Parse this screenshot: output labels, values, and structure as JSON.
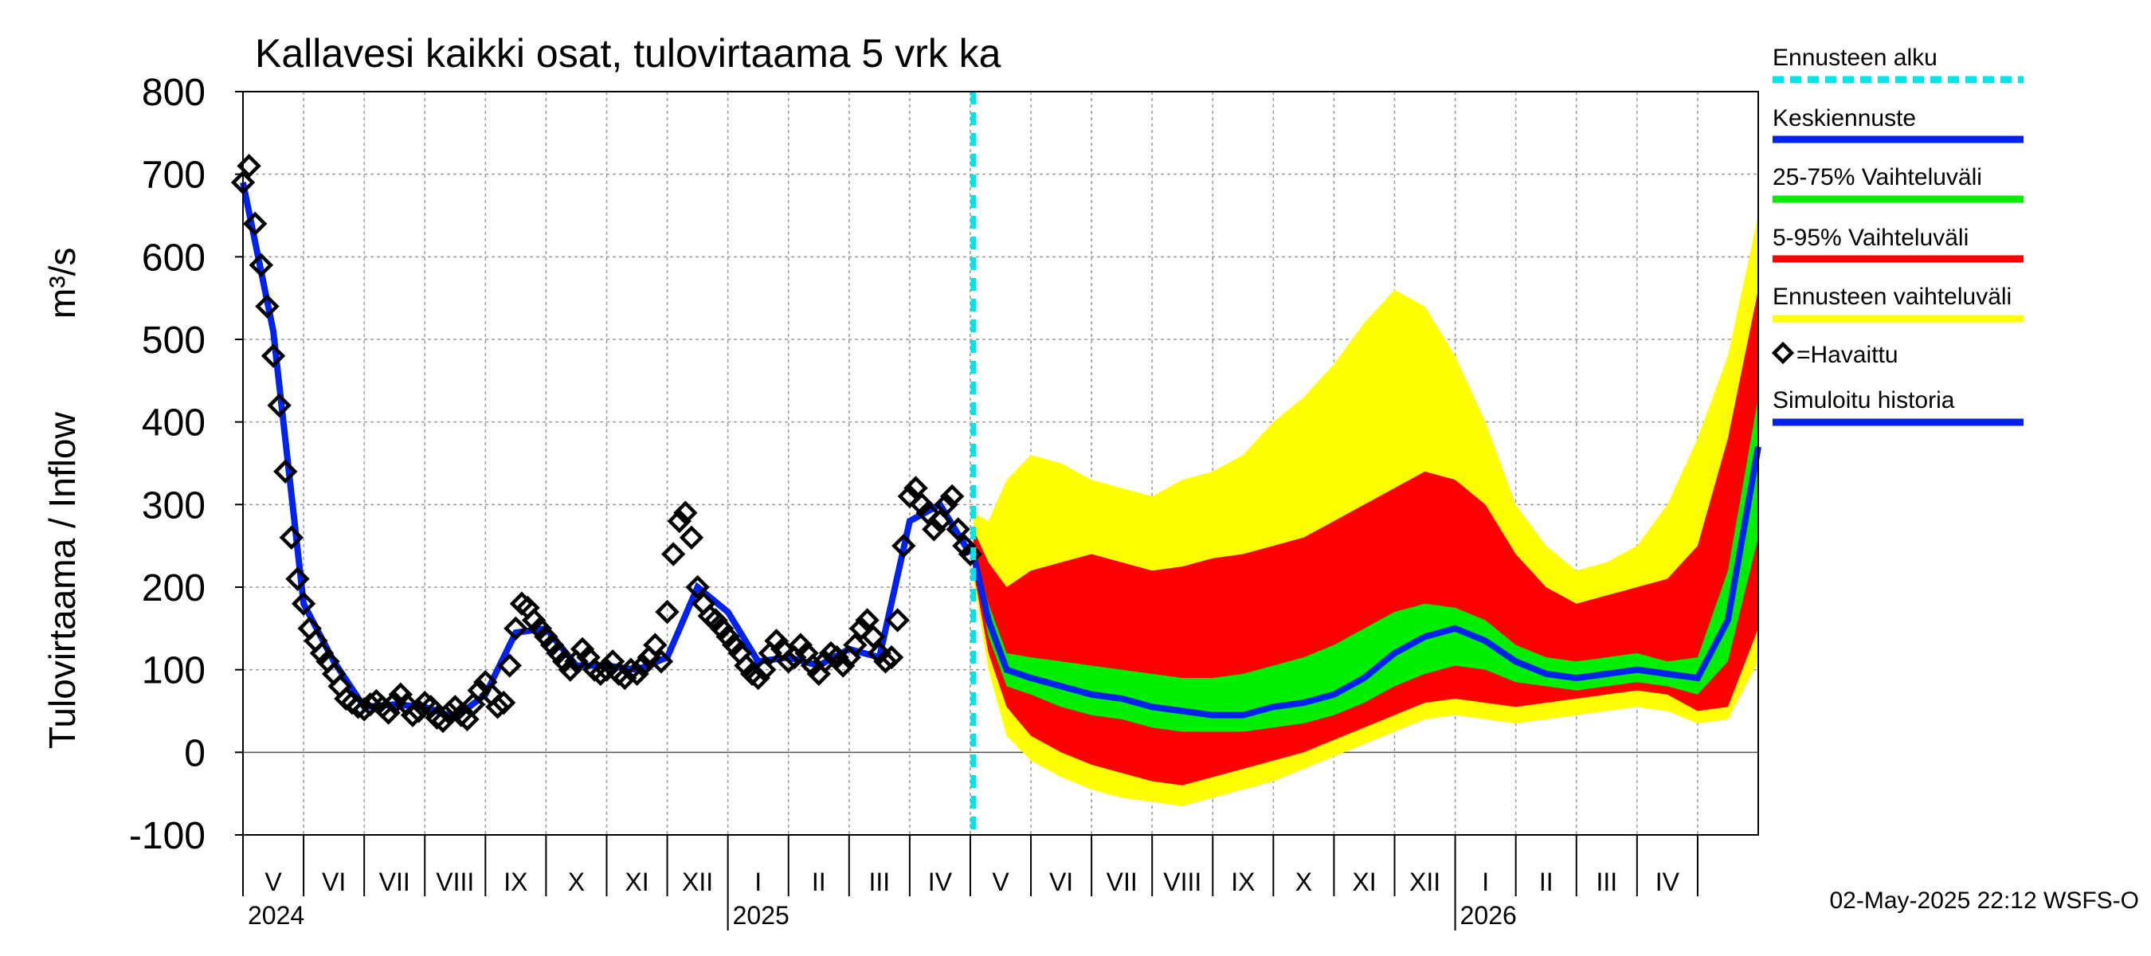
{
  "chart_data": {
    "type": "area",
    "title": "Kallavesi kaikki osat, tulovirtaama  5 vrk ka",
    "ylabel_main": "Tulovirtaama / Inflow",
    "ylabel_unit": "m³/s",
    "ylim": [
      -100,
      800
    ],
    "yticks": [
      -100,
      0,
      100,
      200,
      300,
      400,
      500,
      600,
      700,
      800
    ],
    "x_range_months": [
      0,
      25
    ],
    "months": [
      "V",
      "VI",
      "VII",
      "VIII",
      "IX",
      "X",
      "XI",
      "XII",
      "I",
      "II",
      "III",
      "IV",
      "V",
      "VI",
      "VII",
      "VIII",
      "IX",
      "X",
      "XI",
      "XII",
      "I",
      "II",
      "III",
      "IV"
    ],
    "years": [
      {
        "label": "2024",
        "month_index": 0
      },
      {
        "label": "2025",
        "month_index": 8
      },
      {
        "label": "2026",
        "month_index": 20
      }
    ],
    "forecast_start_month": 12.05,
    "observed": {
      "x": [
        0.0,
        0.1,
        0.2,
        0.3,
        0.4,
        0.5,
        0.6,
        0.7,
        0.8,
        0.9,
        1.0,
        1.1,
        1.2,
        1.3,
        1.4,
        1.5,
        1.6,
        1.7,
        1.8,
        1.9,
        2.0,
        2.1,
        2.2,
        2.3,
        2.4,
        2.5,
        2.6,
        2.7,
        2.8,
        2.9,
        3.0,
        3.1,
        3.2,
        3.3,
        3.4,
        3.5,
        3.6,
        3.7,
        3.8,
        3.9,
        4.0,
        4.1,
        4.2,
        4.3,
        4.4,
        4.5,
        4.6,
        4.7,
        4.8,
        4.9,
        5.0,
        5.1,
        5.2,
        5.3,
        5.4,
        5.5,
        5.6,
        5.7,
        5.8,
        5.9,
        6.0,
        6.1,
        6.2,
        6.3,
        6.4,
        6.5,
        6.6,
        6.7,
        6.8,
        6.9,
        7.0,
        7.1,
        7.2,
        7.3,
        7.4,
        7.5,
        7.6,
        7.7,
        7.8,
        7.9,
        8.0,
        8.1,
        8.2,
        8.3,
        8.4,
        8.5,
        8.6,
        8.7,
        8.8,
        8.9,
        9.0,
        9.1,
        9.2,
        9.3,
        9.4,
        9.5,
        9.6,
        9.7,
        9.8,
        9.9,
        10.0,
        10.1,
        10.2,
        10.3,
        10.4,
        10.5,
        10.6,
        10.7,
        10.8,
        10.9,
        11.0,
        11.1,
        11.2,
        11.3,
        11.4,
        11.5,
        11.6,
        11.7,
        11.8,
        11.9,
        12.0
      ],
      "values": [
        690,
        710,
        640,
        590,
        540,
        480,
        420,
        340,
        260,
        210,
        180,
        150,
        135,
        120,
        110,
        95,
        80,
        65,
        60,
        55,
        52,
        58,
        62,
        55,
        48,
        60,
        70,
        58,
        45,
        50,
        60,
        55,
        42,
        38,
        48,
        55,
        45,
        40,
        58,
        75,
        85,
        70,
        55,
        60,
        105,
        150,
        180,
        175,
        160,
        150,
        140,
        130,
        120,
        110,
        100,
        110,
        125,
        115,
        100,
        95,
        100,
        110,
        95,
        90,
        100,
        95,
        105,
        115,
        130,
        110,
        170,
        240,
        280,
        290,
        260,
        200,
        180,
        165,
        160,
        150,
        140,
        130,
        120,
        105,
        95,
        90,
        100,
        120,
        135,
        125,
        110,
        115,
        130,
        120,
        105,
        95,
        110,
        120,
        115,
        105,
        115,
        130,
        150,
        160,
        140,
        120,
        110,
        115,
        160,
        250,
        310,
        320,
        300,
        290,
        270,
        280,
        300,
        310,
        270,
        250,
        240
      ]
    },
    "simulated_history": {
      "x": [
        0.0,
        0.5,
        1.0,
        1.5,
        2.0,
        2.5,
        3.0,
        3.5,
        4.0,
        4.5,
        5.0,
        5.5,
        6.0,
        6.5,
        7.0,
        7.5,
        8.0,
        8.5,
        9.0,
        9.5,
        10.0,
        10.5,
        11.0,
        11.5,
        12.0
      ],
      "values": [
        690,
        510,
        180,
        110,
        55,
        58,
        55,
        42,
        70,
        145,
        150,
        105,
        105,
        100,
        115,
        200,
        170,
        110,
        115,
        105,
        125,
        115,
        280,
        300,
        240
      ]
    },
    "forecast_x": [
      12.05,
      12.3,
      12.6,
      13.0,
      13.5,
      14.0,
      14.5,
      15.0,
      15.5,
      16.0,
      16.5,
      17.0,
      17.5,
      18.0,
      18.5,
      19.0,
      19.5,
      20.0,
      20.5,
      21.0,
      21.5,
      22.0,
      22.5,
      23.0,
      23.5,
      24.0,
      24.5,
      25.0
    ],
    "forecast_mean": [
      240,
      160,
      100,
      90,
      80,
      70,
      65,
      55,
      50,
      45,
      45,
      55,
      60,
      70,
      90,
      120,
      140,
      150,
      135,
      110,
      95,
      90,
      95,
      100,
      95,
      90,
      160,
      370
    ],
    "band_25_75": {
      "low": [
        230,
        140,
        80,
        70,
        55,
        45,
        40,
        30,
        25,
        25,
        25,
        30,
        35,
        45,
        60,
        80,
        95,
        105,
        100,
        85,
        80,
        75,
        80,
        85,
        80,
        70,
        110,
        260
      ],
      "high": [
        250,
        180,
        120,
        115,
        110,
        105,
        100,
        95,
        90,
        90,
        95,
        105,
        115,
        130,
        150,
        170,
        180,
        175,
        160,
        130,
        115,
        110,
        115,
        120,
        110,
        115,
        220,
        430
      ]
    },
    "band_5_95": {
      "low": [
        220,
        120,
        55,
        20,
        0,
        -15,
        -25,
        -35,
        -40,
        -30,
        -20,
        -10,
        0,
        15,
        30,
        45,
        60,
        65,
        60,
        55,
        60,
        65,
        70,
        75,
        70,
        50,
        55,
        150
      ],
      "high": [
        270,
        230,
        200,
        220,
        230,
        240,
        230,
        220,
        225,
        235,
        240,
        250,
        260,
        280,
        300,
        320,
        340,
        330,
        300,
        240,
        200,
        180,
        190,
        200,
        210,
        250,
        380,
        560
      ]
    },
    "band_ensemble": {
      "low": [
        210,
        100,
        20,
        -10,
        -30,
        -45,
        -55,
        -60,
        -65,
        -55,
        -45,
        -35,
        -20,
        -5,
        10,
        25,
        40,
        45,
        40,
        35,
        40,
        45,
        50,
        55,
        50,
        35,
        40,
        110
      ],
      "high": [
        290,
        280,
        330,
        360,
        350,
        330,
        320,
        310,
        330,
        340,
        360,
        400,
        430,
        470,
        520,
        560,
        540,
        480,
        400,
        300,
        250,
        220,
        230,
        250,
        300,
        380,
        480,
        650
      ]
    },
    "legend": [
      {
        "label": "Ennusteen alku",
        "color": "#00e5e5",
        "style": "dashed"
      },
      {
        "label": "Keskiennuste",
        "color": "#0022ee",
        "style": "line"
      },
      {
        "label": "25-75% Vaihteluväli",
        "color": "#00ee00",
        "style": "line"
      },
      {
        "label": "5-95% Vaihteluväli",
        "color": "#ff0000",
        "style": "line"
      },
      {
        "label": "Ennusteen vaihteluväli",
        "color": "#ffff00",
        "style": "line"
      },
      {
        "label": "=Havaittu",
        "color": "#000000",
        "style": "marker"
      },
      {
        "label": "Simuloitu historia",
        "color": "#0022ee",
        "style": "line"
      }
    ],
    "colors": {
      "ensemble": "#ffff00",
      "p5_95": "#ff0000",
      "p25_75": "#00ee00",
      "mean": "#0022ee",
      "observed": "#000000",
      "forecast_start": "#00e5e5",
      "grid": "#999999"
    },
    "footer": "02-May-2025 22:12 WSFS-O"
  }
}
